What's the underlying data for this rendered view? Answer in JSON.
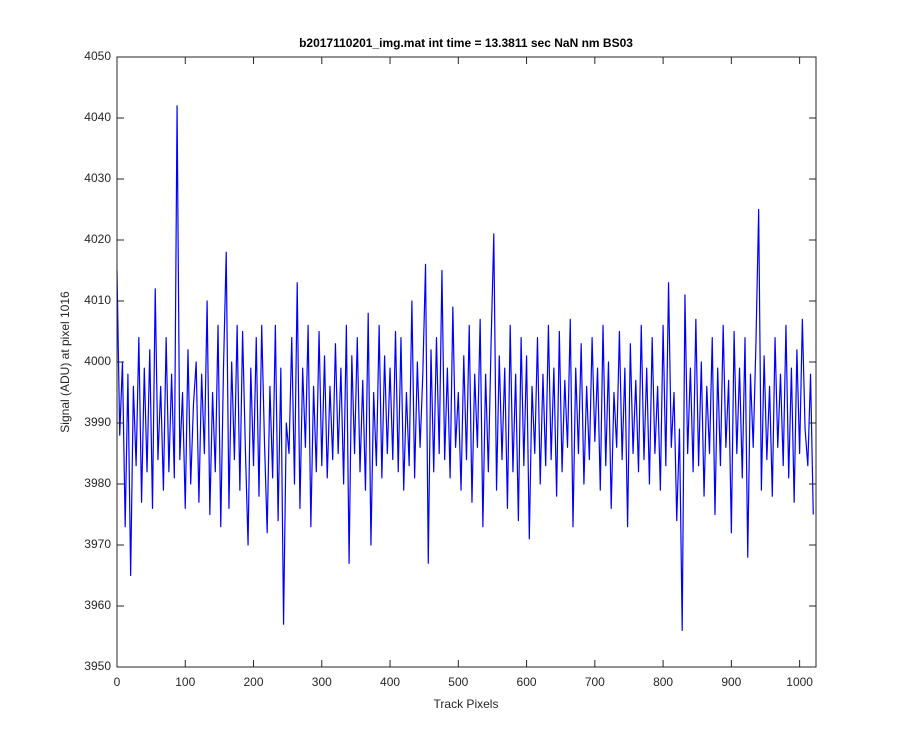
{
  "chart_data": {
    "type": "line",
    "title": "b2017110201_img.mat int time = 13.3811 sec  NaN nm BS03",
    "xlabel": "Track Pixels",
    "ylabel": "Signal (ADU) at pixel 1016",
    "color": "#0000ff",
    "xlim": [
      0,
      1024
    ],
    "ylim": [
      3950,
      4050
    ],
    "xticks": [
      0,
      100,
      200,
      300,
      400,
      500,
      600,
      700,
      800,
      900,
      1000
    ],
    "yticks": [
      3950,
      3960,
      3970,
      3980,
      3990,
      4000,
      4010,
      4020,
      4030,
      4040,
      4050
    ],
    "x": [
      0,
      4,
      8,
      12,
      16,
      20,
      24,
      28,
      32,
      36,
      40,
      44,
      48,
      52,
      56,
      60,
      64,
      68,
      72,
      76,
      80,
      84,
      88,
      92,
      96,
      100,
      104,
      108,
      112,
      116,
      120,
      124,
      128,
      132,
      136,
      140,
      144,
      148,
      152,
      156,
      160,
      164,
      168,
      172,
      176,
      180,
      184,
      188,
      192,
      196,
      200,
      204,
      208,
      212,
      216,
      220,
      224,
      228,
      232,
      236,
      240,
      244,
      248,
      252,
      256,
      260,
      264,
      268,
      272,
      276,
      280,
      284,
      288,
      292,
      296,
      300,
      304,
      308,
      312,
      316,
      320,
      324,
      328,
      332,
      336,
      340,
      344,
      348,
      352,
      356,
      360,
      364,
      368,
      372,
      376,
      380,
      384,
      388,
      392,
      396,
      400,
      404,
      408,
      412,
      416,
      420,
      424,
      428,
      432,
      436,
      440,
      444,
      448,
      452,
      456,
      460,
      464,
      468,
      472,
      476,
      480,
      484,
      488,
      492,
      496,
      500,
      504,
      508,
      512,
      516,
      520,
      524,
      528,
      532,
      536,
      540,
      544,
      548,
      552,
      556,
      560,
      564,
      568,
      572,
      576,
      580,
      584,
      588,
      592,
      596,
      600,
      604,
      608,
      612,
      616,
      620,
      624,
      628,
      632,
      636,
      640,
      644,
      648,
      652,
      656,
      660,
      664,
      668,
      672,
      676,
      680,
      684,
      688,
      692,
      696,
      700,
      704,
      708,
      712,
      716,
      720,
      724,
      728,
      732,
      736,
      740,
      744,
      748,
      752,
      756,
      760,
      764,
      768,
      772,
      776,
      780,
      784,
      788,
      792,
      796,
      800,
      804,
      808,
      812,
      816,
      820,
      824,
      828,
      832,
      836,
      840,
      844,
      848,
      852,
      856,
      860,
      864,
      868,
      872,
      876,
      880,
      884,
      888,
      892,
      896,
      900,
      904,
      908,
      912,
      916,
      920,
      924,
      928,
      932,
      936,
      940,
      944,
      948,
      952,
      956,
      960,
      964,
      968,
      972,
      976,
      980,
      984,
      988,
      992,
      996,
      1000,
      1004,
      1008,
      1012,
      1016,
      1020
    ],
    "values": [
      4015,
      3988,
      4000,
      3973,
      3998,
      3965,
      3996,
      3983,
      4004,
      3977,
      3999,
      3982,
      4002,
      3976,
      4012,
      3984,
      3996,
      3979,
      4004,
      3982,
      3998,
      3981,
      4042,
      3984,
      3995,
      3976,
      4002,
      3980,
      3993,
      4000,
      3977,
      3998,
      3985,
      4010,
      3975,
      3995,
      3982,
      4006,
      3973,
      3999,
      4018,
      3976,
      4000,
      3984,
      4006,
      3979,
      4005,
      3986,
      3970,
      3999,
      3983,
      4004,
      3978,
      4006,
      3987,
      3972,
      3996,
      3981,
      4006,
      3974,
      3999,
      3957,
      3990,
      3985,
      4004,
      3980,
      4013,
      3976,
      3999,
      3986,
      4006,
      3973,
      3996,
      3982,
      4005,
      3983,
      4001,
      3981,
      3996,
      3984,
      4003,
      3985,
      3999,
      3980,
      4006,
      3967,
      4001,
      3985,
      4004,
      3982,
      3997,
      3979,
      4008,
      3970,
      3995,
      3983,
      4006,
      3981,
      4001,
      3985,
      3999,
      3984,
      4005,
      3982,
      4004,
      3979,
      3995,
      3983,
      4010,
      3981,
      4000,
      3986,
      3998,
      4016,
      3967,
      4002,
      3982,
      4004,
      3985,
      4015,
      3984,
      3999,
      3981,
      4009,
      3986,
      3995,
      3979,
      4001,
      3984,
      4006,
      3977,
      3998,
      3986,
      4007,
      3973,
      3998,
      3982,
      4003,
      4021,
      3979,
      4001,
      3984,
      3999,
      3976,
      4006,
      3982,
      3998,
      3974,
      4004,
      3983,
      4001,
      3971,
      3996,
      3985,
      4004,
      3980,
      3998,
      3983,
      4006,
      3984,
      3999,
      3978,
      4005,
      3982,
      3997,
      3986,
      4007,
      3973,
      3999,
      3985,
      4003,
      3980,
      3996,
      3984,
      4004,
      3987,
      3999,
      3979,
      4006,
      3983,
      4000,
      3976,
      3995,
      3986,
      4005,
      3984,
      3999,
      3973,
      4003,
      3985,
      3997,
      3982,
      4006,
      3984,
      3999,
      3980,
      4004,
      3985,
      3996,
      3979,
      4006,
      3983,
      4013,
      3986,
      3995,
      3974,
      3989,
      3956,
      4011,
      3985,
      3999,
      3982,
      4007,
      3983,
      4000,
      3978,
      3996,
      3985,
      4004,
      3975,
      3999,
      3983,
      4006,
      3986,
      3997,
      3972,
      4005,
      3985,
      3999,
      3981,
      4004,
      3968,
      3998,
      3986,
      4003,
      4025,
      3979,
      4001,
      3984,
      3996,
      3978,
      4004,
      3986,
      3998,
      3983,
      4006,
      3981,
      3999,
      3977,
      4002,
      3985,
      4007,
      3989,
      3983,
      3998,
      3975
    ]
  }
}
